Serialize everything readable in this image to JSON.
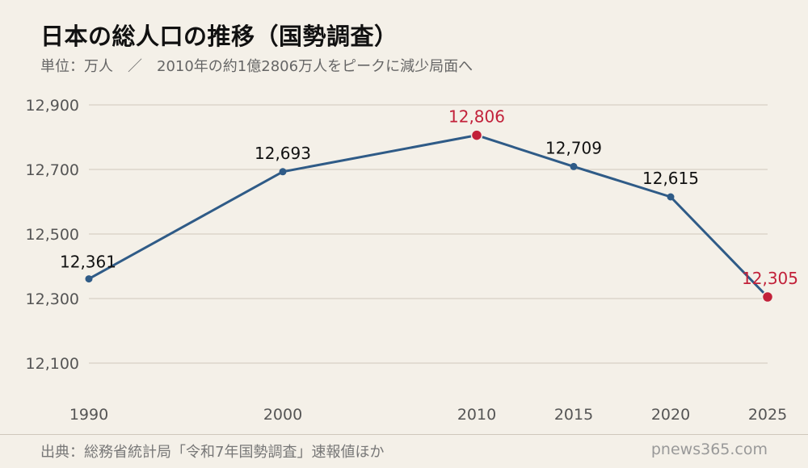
{
  "header": {
    "title": "日本の総人口の推移（国勢調査）",
    "subtitle": "単位：万人　／　2010年の約1億2806万人をピークに減少局面へ"
  },
  "footer": {
    "source": "出典：総務省統計局「令和7年国勢調査」速報値ほか",
    "brand": "pnews365.com"
  },
  "colors": {
    "background": "#f4f0e8",
    "line": "#2f5b87",
    "highlight": "#c2213a",
    "grid": "#cfc8bc"
  },
  "chart_data": {
    "type": "line",
    "x": [
      "1990",
      "2000",
      "2010",
      "2015",
      "2020",
      "2025"
    ],
    "series": [
      {
        "values": [
          12361,
          12693,
          12806,
          12709,
          12615,
          12305
        ],
        "value_labels": [
          "12,361",
          "12,693",
          "12,806",
          "12,709",
          "12,615",
          "12,305"
        ],
        "highlight_points": [
          "2010",
          "2025"
        ]
      }
    ],
    "yticks": [
      12100,
      12300,
      12500,
      12700,
      12900
    ],
    "ytick_labels": [
      "12,100",
      "12,300",
      "12,500",
      "12,700",
      "12,900"
    ],
    "ylim": [
      12000,
      12900
    ],
    "grid": true,
    "legend": "none"
  }
}
